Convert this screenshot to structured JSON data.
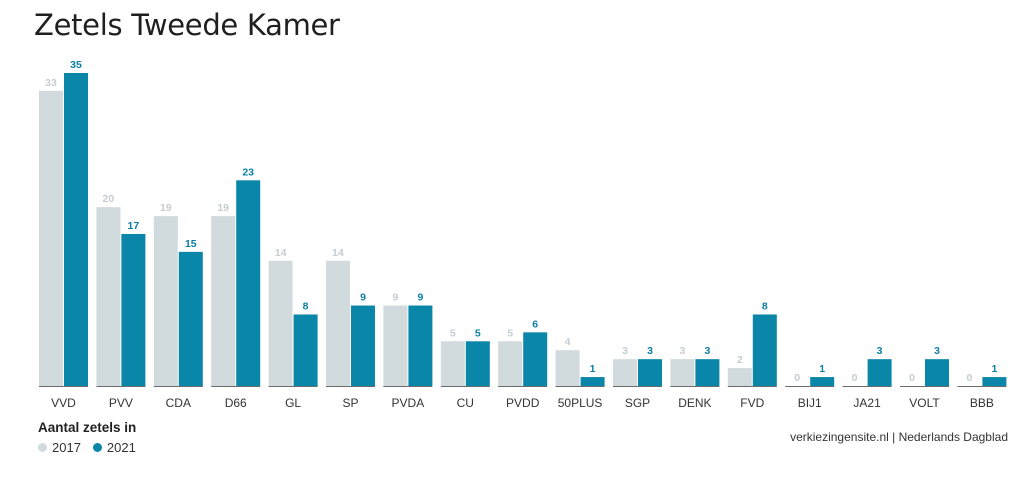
{
  "title": "Zetels Tweede Kamer",
  "legend_title": "Aantal zetels in",
  "source": "verkiezingensite.nl | Nederlands Dagblad",
  "colors": {
    "y2017": "#d1dadd",
    "y2021": "#0a86a8",
    "label2017": "#c4cdd1",
    "label2021": "#0a7ea3"
  },
  "chart_data": {
    "type": "bar",
    "title": "Zetels Tweede Kamer",
    "xlabel": "",
    "ylabel": "",
    "ylim": [
      0,
      35
    ],
    "grid": false,
    "legend": "bottom-left",
    "categories": [
      "VVD",
      "PVV",
      "CDA",
      "D66",
      "GL",
      "SP",
      "PVDA",
      "CU",
      "PVDD",
      "50PLUS",
      "SGP",
      "DENK",
      "FVD",
      "BIJ1",
      "JA21",
      "VOLT",
      "BBB"
    ],
    "series": [
      {
        "name": "2017",
        "values": [
          33,
          20,
          19,
          19,
          14,
          14,
          9,
          5,
          5,
          4,
          3,
          3,
          2,
          0,
          0,
          0,
          0
        ]
      },
      {
        "name": "2021",
        "values": [
          35,
          17,
          15,
          23,
          8,
          9,
          9,
          5,
          6,
          1,
          3,
          3,
          8,
          1,
          3,
          3,
          1
        ]
      }
    ]
  }
}
